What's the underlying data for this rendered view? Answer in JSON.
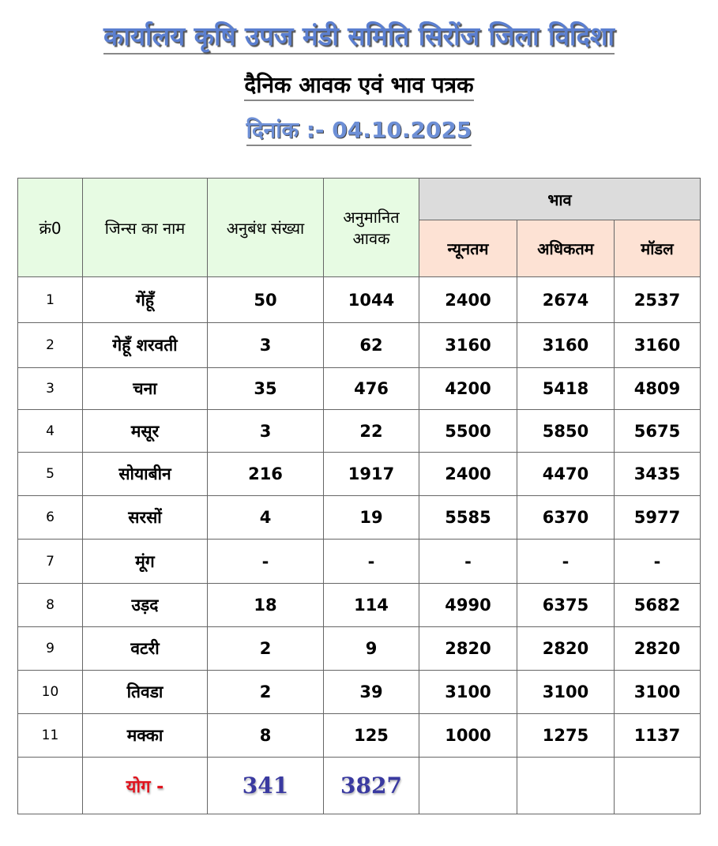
{
  "title": "कार्यालय कृषि उपज मंडी समिति सिरोंज जिला विदिशा",
  "subtitle": "दैनिक आवक एवं भाव पत्रक",
  "date_line": "दिनांक :- 04.10.2025",
  "colors": {
    "title": "#5b7fd0",
    "header_green": "#e7fbe3",
    "header_gray": "#dcdcdc",
    "header_peach": "#fde2d4",
    "total_label": "#e0141e",
    "total_values": "#3a3aa0"
  },
  "headers": {
    "sn": "क्रं0",
    "name": "जिन्स का नाम",
    "contracts": "अनुबंध संख्या",
    "arrival": "अनुमानित आवक",
    "price": "भाव",
    "min": "न्यूनतम",
    "max": "अधिकतम",
    "modal": "मॉडल"
  },
  "rows": [
    [
      "1",
      "गेंहूँ",
      "50",
      "1044",
      "2400",
      "2674",
      "2537"
    ],
    [
      "2",
      "गेहूँ शरवती",
      "3",
      "62",
      "3160",
      "3160",
      "3160"
    ],
    [
      "3",
      "चना",
      "35",
      "476",
      "4200",
      "5418",
      "4809"
    ],
    [
      "4",
      "मसूर",
      "3",
      "22",
      "5500",
      "5850",
      "5675"
    ],
    [
      "5",
      "सोयाबीन",
      "216",
      "1917",
      "2400",
      "4470",
      "3435"
    ],
    [
      "6",
      "सरसों",
      "4",
      "19",
      "5585",
      "6370",
      "5977"
    ],
    [
      "7",
      "मूंग",
      "-",
      "-",
      "-",
      "-",
      "-"
    ],
    [
      "8",
      "उड़द",
      "18",
      "114",
      "4990",
      "6375",
      "5682"
    ],
    [
      "9",
      "वटरी",
      "2",
      "9",
      "2820",
      "2820",
      "2820"
    ],
    [
      "10",
      "तिवडा",
      "2",
      "39",
      "3100",
      "3100",
      "3100"
    ],
    [
      "11",
      "मक्का",
      "8",
      "125",
      "1000",
      "1275",
      "1137"
    ]
  ],
  "total": {
    "label": "योग -",
    "contracts": "341",
    "arrival": "3827"
  }
}
